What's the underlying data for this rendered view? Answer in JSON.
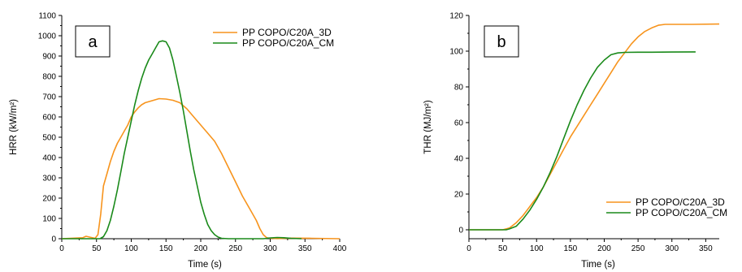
{
  "colors": {
    "orange": "#f7941d",
    "green": "#1a8a1a",
    "axis": "#000000"
  },
  "chart_data": [
    {
      "type": "line",
      "panel_label": "a",
      "title": "",
      "xlabel": "Time (s)",
      "ylabel": "HRR (kW/m²)",
      "xlim": [
        0,
        400
      ],
      "ylim": [
        0,
        1100
      ],
      "xticks": [
        0,
        50,
        100,
        150,
        200,
        250,
        300,
        350,
        400
      ],
      "yticks": [
        0,
        100,
        200,
        300,
        400,
        500,
        600,
        700,
        800,
        900,
        1000,
        1100
      ],
      "grid": false,
      "legend_position": "top-right",
      "series": [
        {
          "name": "PP COPO/C20A_3D",
          "color": "#f7941d",
          "x": [
            0,
            30,
            35,
            40,
            48,
            52,
            56,
            60,
            65,
            70,
            75,
            80,
            85,
            90,
            95,
            100,
            105,
            110,
            115,
            120,
            130,
            140,
            150,
            160,
            170,
            180,
            190,
            200,
            210,
            220,
            230,
            240,
            250,
            260,
            270,
            280,
            285,
            290,
            295,
            300,
            310,
            330,
            360,
            400
          ],
          "y": [
            0,
            5,
            12,
            8,
            2,
            20,
            120,
            260,
            320,
            380,
            430,
            470,
            500,
            530,
            560,
            600,
            625,
            645,
            660,
            670,
            680,
            690,
            688,
            682,
            670,
            640,
            600,
            560,
            520,
            480,
            420,
            350,
            280,
            210,
            150,
            90,
            50,
            20,
            5,
            2,
            1,
            3,
            2,
            0
          ]
        },
        {
          "name": "PP COPO/C20A_CM",
          "color": "#1a8a1a",
          "x": [
            0,
            55,
            60,
            65,
            70,
            75,
            80,
            85,
            90,
            95,
            100,
            105,
            110,
            115,
            120,
            125,
            130,
            135,
            140,
            145,
            150,
            155,
            160,
            165,
            170,
            175,
            180,
            185,
            190,
            195,
            200,
            205,
            210,
            215,
            220,
            225,
            230,
            240,
            250,
            270,
            290,
            300,
            310,
            320,
            330,
            345
          ],
          "y": [
            0,
            0,
            10,
            40,
            90,
            160,
            240,
            330,
            420,
            500,
            580,
            660,
            730,
            790,
            840,
            880,
            910,
            940,
            970,
            975,
            970,
            940,
            880,
            800,
            720,
            630,
            530,
            430,
            340,
            260,
            180,
            120,
            70,
            40,
            20,
            8,
            2,
            0,
            0,
            0,
            0,
            4,
            6,
            5,
            2,
            0
          ]
        }
      ]
    },
    {
      "type": "line",
      "panel_label": "b",
      "title": "",
      "xlabel": "Time (s)",
      "ylabel": "THR (MJ/m²)",
      "xlim": [
        0,
        370
      ],
      "ylim": [
        -5,
        120
      ],
      "xticks": [
        0,
        50,
        100,
        150,
        200,
        250,
        300,
        350
      ],
      "yticks": [
        0,
        20,
        40,
        60,
        80,
        100,
        120
      ],
      "grid": false,
      "legend_position": "bottom-right",
      "series": [
        {
          "name": "PP COPO/C20A_3D",
          "color": "#f7941d",
          "x": [
            0,
            50,
            60,
            70,
            80,
            90,
            100,
            110,
            120,
            130,
            140,
            150,
            160,
            170,
            180,
            190,
            200,
            210,
            220,
            230,
            240,
            250,
            260,
            270,
            280,
            290,
            300,
            330,
            370
          ],
          "y": [
            0,
            0,
            1,
            4,
            8,
            13,
            18,
            24,
            31,
            38,
            45,
            52,
            58,
            64,
            70,
            76,
            82,
            88,
            94,
            99,
            104,
            108,
            111,
            113,
            114.5,
            115,
            115,
            115,
            115.2
          ]
        },
        {
          "name": "PP COPO/C20A_CM",
          "color": "#1a8a1a",
          "x": [
            0,
            55,
            60,
            70,
            80,
            90,
            100,
            110,
            120,
            130,
            140,
            150,
            160,
            170,
            180,
            190,
            200,
            210,
            220,
            230,
            250,
            270,
            300,
            335
          ],
          "y": [
            0,
            0,
            0.5,
            2,
            6,
            11,
            17,
            24,
            32,
            41,
            51,
            61,
            70,
            78,
            85,
            91,
            95,
            98,
            99,
            99.3,
            99.4,
            99.4,
            99.5,
            99.6
          ]
        }
      ]
    }
  ]
}
